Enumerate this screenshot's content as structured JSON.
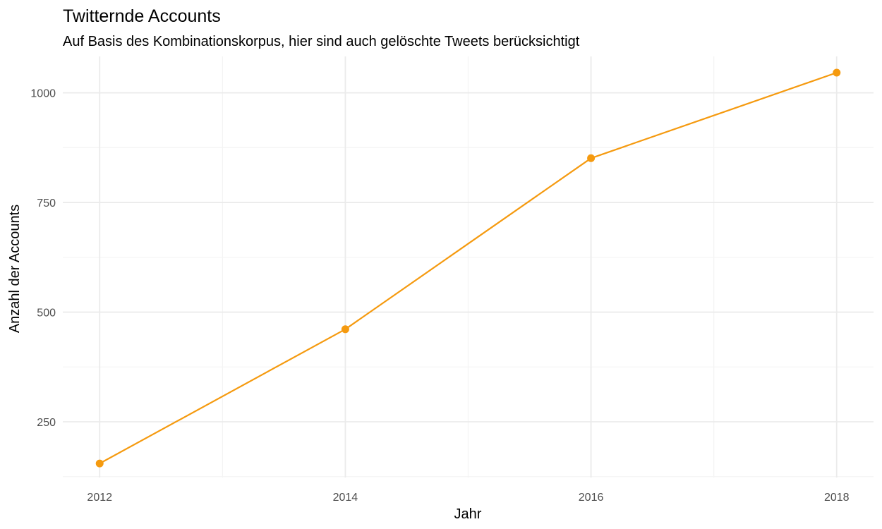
{
  "chart_data": {
    "type": "line",
    "title": "Twitternde Accounts",
    "subtitle": "Auf Basis des Kombinationskorpus, hier sind auch gelöschte Tweets berücksichtigt",
    "xlabel": "Jahr",
    "ylabel": "Anzahl der Accounts",
    "x": [
      2012,
      2014,
      2016,
      2018
    ],
    "series": [
      {
        "values": [
          155,
          461,
          851,
          1046
        ]
      }
    ],
    "xlim": [
      2011.7,
      2018.3
    ],
    "ylim": [
      123,
      1083
    ],
    "x_ticks": [
      2012,
      2014,
      2016,
      2018
    ],
    "x_tick_labels": [
      "2012",
      "2014",
      "2016",
      "2018"
    ],
    "x_minor_ticks": [
      2013,
      2015,
      2017
    ],
    "y_ticks": [
      250,
      500,
      750,
      1000
    ],
    "y_tick_labels": [
      "250",
      "500",
      "750",
      "1000"
    ],
    "y_minor_ticks": [
      125,
      375,
      625,
      875
    ],
    "grid": true,
    "legend": "none",
    "line_color": "#f59a0f",
    "grid_color": "#ebebeb",
    "grid_minor_color": "#f4f4f4"
  }
}
